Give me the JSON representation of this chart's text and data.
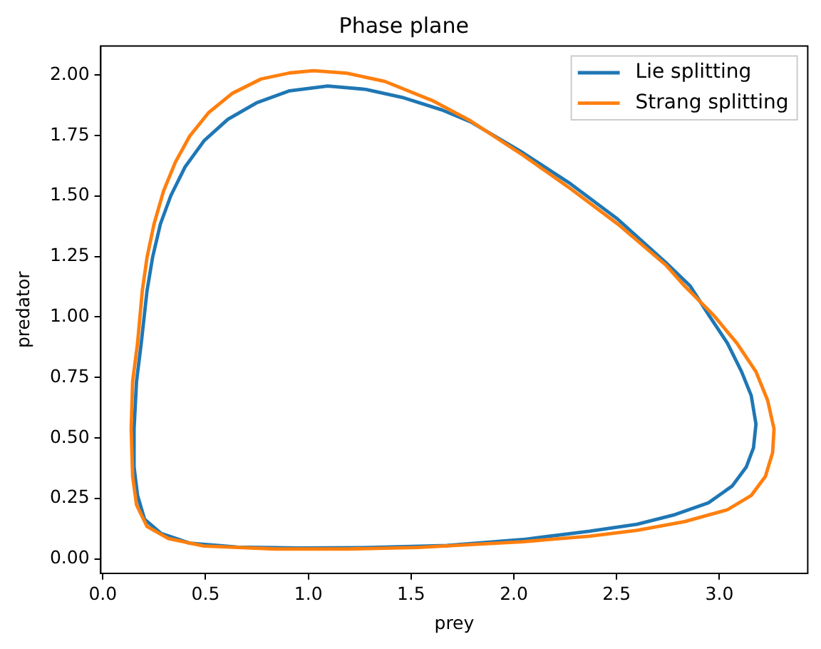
{
  "chart_data": {
    "type": "line",
    "title": "Phase plane",
    "xlabel": "prey",
    "ylabel": "predator",
    "xlim": [
      -0.01,
      3.43
    ],
    "ylim": [
      -0.06,
      2.12
    ],
    "xticks": [
      {
        "value": 0,
        "label": "0.0"
      },
      0.5,
      {
        "value": 1,
        "label": "1.0"
      },
      1.5,
      {
        "value": 2,
        "label": "2.0"
      },
      2.5,
      {
        "value": 3,
        "label": "3.0"
      }
    ],
    "yticks": [
      {
        "value": 0,
        "label": "0.00"
      },
      0.25,
      {
        "value": 0.5,
        "label": "0.50"
      },
      0.75,
      {
        "value": 1,
        "label": "1.00"
      },
      1.25,
      {
        "value": 1.5,
        "label": "1.50"
      },
      1.75,
      {
        "value": 2,
        "label": "2.00"
      }
    ],
    "legend": "top right",
    "marker": "none",
    "line_style": "solid",
    "series": [
      {
        "name": "Lie splitting",
        "color": "#1f77b4",
        "x": [
          0.655,
          0.956,
          1.303,
          1.673,
          2.044,
          2.367,
          2.599,
          2.784,
          2.947,
          3.062,
          3.131,
          3.166,
          3.178,
          3.155,
          3.108,
          3.039,
          2.947,
          2.858,
          2.738,
          2.506,
          2.275,
          2.044,
          1.789,
          1.65,
          1.465,
          1.28,
          1.094,
          0.909,
          0.747,
          0.608,
          0.492,
          0.4,
          0.331,
          0.28,
          0.242,
          0.215,
          0.187,
          0.164,
          0.152,
          0.152,
          0.169,
          0.203,
          0.284,
          0.423,
          0.655,
          0.956
        ],
        "values": [
          0.049,
          0.045,
          0.047,
          0.055,
          0.08,
          0.114,
          0.143,
          0.183,
          0.232,
          0.301,
          0.38,
          0.459,
          0.557,
          0.675,
          0.774,
          0.892,
          1.01,
          1.128,
          1.226,
          1.404,
          1.551,
          1.679,
          1.807,
          1.856,
          1.906,
          1.941,
          1.955,
          1.935,
          1.885,
          1.817,
          1.728,
          1.62,
          1.502,
          1.384,
          1.246,
          1.108,
          0.892,
          0.734,
          0.537,
          0.38,
          0.262,
          0.164,
          0.105,
          0.065,
          0.049,
          0.045
        ]
      },
      {
        "name": "Strang splitting",
        "color": "#ff7f0e",
        "x": [
          0.492,
          0.84,
          1.187,
          1.534,
          2.044,
          2.367,
          2.599,
          2.831,
          3.039,
          3.155,
          3.224,
          3.259,
          3.266,
          3.235,
          3.178,
          3.085,
          2.969,
          2.831,
          2.738,
          2.506,
          2.275,
          2.044,
          1.789,
          1.603,
          1.372,
          1.187,
          1.025,
          0.909,
          0.77,
          0.631,
          0.516,
          0.423,
          0.353,
          0.296,
          0.249,
          0.215,
          0.192,
          0.169,
          0.145,
          0.138,
          0.145,
          0.164,
          0.215,
          0.319,
          0.492,
          0.84
        ],
        "values": [
          0.053,
          0.041,
          0.041,
          0.047,
          0.071,
          0.094,
          0.118,
          0.154,
          0.203,
          0.262,
          0.341,
          0.439,
          0.537,
          0.655,
          0.774,
          0.892,
          1.01,
          1.128,
          1.216,
          1.384,
          1.531,
          1.669,
          1.811,
          1.895,
          1.974,
          2.008,
          2.018,
          2.009,
          1.984,
          1.925,
          1.846,
          1.748,
          1.64,
          1.522,
          1.384,
          1.246,
          1.108,
          0.892,
          0.734,
          0.537,
          0.341,
          0.223,
          0.134,
          0.084,
          0.053,
          0.041
        ]
      }
    ]
  }
}
